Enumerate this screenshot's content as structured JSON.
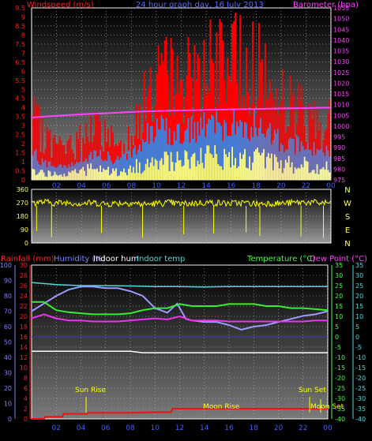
{
  "chart_data": [
    {
      "type": "area",
      "title": "24 hour graph day, 16 July 2013",
      "left_label": "Windspeed (m/s)",
      "right_label": "Barometer (hpa)",
      "x_ticks": [
        "02",
        "04",
        "06",
        "08",
        "10",
        "12",
        "14",
        "16",
        "18",
        "20",
        "22",
        "00"
      ],
      "y_left_ticks": [
        "0",
        "0.5",
        "1",
        "1.5",
        "2",
        "2.5",
        "3",
        "3.5",
        "4",
        "4.5",
        "5",
        "5.5",
        "6",
        "6.5",
        "7",
        "7.5",
        "8",
        "8.5",
        "9",
        "9.5"
      ],
      "y_right_ticks": [
        "975",
        "980",
        "985",
        "990",
        "995",
        "1000",
        "1005",
        "1010",
        "1015",
        "1020",
        "1025",
        "1030",
        "1035",
        "1040",
        "1045",
        "1050",
        "1055"
      ],
      "ylim_left": [
        0,
        9.5
      ],
      "ylim_right": [
        975,
        1055
      ],
      "series": [
        {
          "name": "Wind gust",
          "color": "#ff0000",
          "x": [
            0,
            1,
            2,
            3,
            4,
            5,
            6,
            7,
            8,
            9,
            10,
            11,
            12,
            13,
            14,
            15,
            16,
            17,
            18,
            19,
            20,
            21,
            22,
            23,
            24
          ],
          "values": [
            3.4,
            2.4,
            1.9,
            1.7,
            2.4,
            2.7,
            2.6,
            1.9,
            2.5,
            4.1,
            5.6,
            5.6,
            5.4,
            5.9,
            6.3,
            6.1,
            6.6,
            6.4,
            6.4,
            5.1,
            4.4,
            4.1,
            3.6,
            3.2,
            3.2
          ]
        },
        {
          "name": "Wind average",
          "color": "#4a7fd8",
          "x": [
            0,
            1,
            2,
            3,
            4,
            5,
            6,
            7,
            8,
            9,
            10,
            11,
            12,
            13,
            14,
            15,
            16,
            17,
            18,
            19,
            20,
            21,
            22,
            23,
            24
          ],
          "values": [
            1.6,
            0.9,
            0.8,
            0.8,
            1.2,
            1.4,
            1.3,
            1.0,
            1.5,
            2.3,
            2.8,
            2.7,
            2.6,
            2.8,
            3.1,
            2.9,
            3.1,
            3.0,
            3.0,
            2.6,
            2.2,
            2.0,
            1.8,
            1.6,
            1.7
          ]
        },
        {
          "name": "Wind minimum",
          "color": "#ffff88",
          "x": [
            0,
            1,
            2,
            3,
            4,
            5,
            6,
            7,
            8,
            9,
            10,
            11,
            12,
            13,
            14,
            15,
            16,
            17,
            18,
            19,
            20,
            21,
            22,
            23,
            24
          ],
          "values": [
            0.6,
            0.4,
            0.3,
            0.4,
            0.5,
            0.6,
            0.5,
            0.4,
            0.6,
            0.9,
            1.0,
            1.1,
            1.0,
            1.1,
            1.2,
            1.2,
            1.3,
            1.2,
            1.2,
            1.0,
            0.9,
            0.8,
            0.8,
            0.7,
            0.7
          ]
        },
        {
          "name": "Barometer",
          "color": "#ff44ff",
          "axis": "right",
          "x": [
            0,
            2,
            4,
            6,
            8,
            10,
            12,
            14,
            16,
            18,
            20,
            22,
            24
          ],
          "values": [
            1004.0,
            1004.8,
            1005.5,
            1006.0,
            1006.6,
            1007.0,
            1007.3,
            1007.5,
            1007.8,
            1008.0,
            1008.2,
            1008.4,
            1008.6
          ]
        }
      ]
    },
    {
      "type": "line",
      "left_ticks": [
        "0",
        "90",
        "180",
        "270",
        "360"
      ],
      "right_ticks": [
        "N",
        "W",
        "S",
        "E",
        "N"
      ],
      "ylim": [
        0,
        360
      ],
      "series": [
        {
          "name": "Wind direction",
          "color": "#ffff00",
          "x": [
            0,
            1,
            2,
            3,
            4,
            5,
            6,
            7,
            8,
            9,
            10,
            11,
            12,
            13,
            14,
            15,
            16,
            17,
            18,
            19,
            20,
            21,
            22,
            23,
            24
          ],
          "values": [
            270,
            275,
            268,
            272,
            265,
            270,
            262,
            268,
            270,
            258,
            265,
            270,
            262,
            266,
            272,
            268,
            265,
            270,
            262,
            268,
            265,
            270,
            275,
            268,
            270
          ]
        }
      ]
    },
    {
      "type": "line",
      "labels": {
        "rain": "Rainfall (mm)",
        "humidity": "Humidity (%)",
        "indoor_hum": "Indoor hum",
        "indoor_temp": "Indoor temp",
        "temperature": "Temperature (°C)",
        "dewpoint": "Dew Point (°C)"
      },
      "events": {
        "sun_rise": "Sun Rise",
        "sun_set": "Sun Set",
        "moon_rise": "Moon Rise",
        "moon_set": "Moon Set"
      },
      "y_humidity_ticks": [
        "0",
        "10",
        "20",
        "30",
        "40",
        "50",
        "60",
        "70",
        "80",
        "90",
        "100"
      ],
      "y_rain_ticks": [
        "0",
        "2",
        "4",
        "6",
        "8",
        "10",
        "12",
        "14",
        "16",
        "18",
        "20",
        "22",
        "24",
        "26",
        "28",
        "30"
      ],
      "y_temp_ticks": [
        "35",
        "30",
        "25",
        "20",
        "15",
        "10",
        "5",
        "0",
        "-5",
        "-10",
        "-15",
        "-20",
        "-25",
        "-30",
        "-35",
        "-40"
      ],
      "y_dew_ticks": [
        "35",
        "30",
        "25",
        "20",
        "15",
        "10",
        "5",
        "0",
        "-5",
        "-10",
        "-15",
        "-20",
        "-25",
        "-30",
        "-35",
        "-40"
      ],
      "x_ticks": [
        "02",
        "04",
        "06",
        "08",
        "10",
        "12",
        "14",
        "16",
        "18",
        "20",
        "22",
        "00"
      ],
      "ylim_temp": [
        -40,
        35
      ],
      "series": [
        {
          "name": "Humidity",
          "color": "#9a9aff",
          "unit": "%",
          "x": [
            0,
            1,
            2,
            3,
            4,
            5,
            6,
            7,
            8,
            9,
            10,
            11,
            11.8,
            12.5,
            13,
            14,
            15,
            16,
            17,
            18,
            19,
            20,
            21,
            22,
            23,
            24
          ],
          "values": [
            70,
            75,
            80,
            84,
            86,
            86,
            85,
            85,
            83,
            80,
            72,
            69,
            75,
            65,
            64,
            63,
            63,
            61,
            58,
            60,
            61,
            63,
            65,
            67,
            68,
            70
          ]
        },
        {
          "name": "Indoor hum",
          "color": "#ffffff",
          "unit": "%",
          "x": [
            0,
            1,
            2,
            3,
            4,
            5,
            6,
            7,
            8,
            9,
            10,
            11,
            12,
            13,
            14,
            15,
            16,
            17,
            18,
            19,
            20,
            21,
            22,
            23,
            24
          ],
          "values": [
            44,
            44,
            44,
            44,
            44,
            44,
            44,
            44,
            44,
            43,
            43,
            43,
            43,
            43,
            43,
            43,
            43,
            43,
            43,
            43,
            43,
            43,
            43,
            43,
            43
          ]
        },
        {
          "name": "Indoor temp",
          "color": "#44dddd",
          "unit": "°C",
          "x": [
            0,
            2,
            4,
            6,
            8,
            10,
            12,
            14,
            16,
            18,
            20,
            22,
            24
          ],
          "values": [
            26.5,
            25.5,
            25.0,
            25.0,
            24.8,
            24.5,
            24.5,
            24.3,
            24.5,
            24.5,
            24.5,
            24.5,
            24.5
          ]
        },
        {
          "name": "Temperature",
          "color": "#33ee33",
          "unit": "°C",
          "x": [
            0,
            1,
            2,
            3,
            4,
            5,
            6,
            7,
            8,
            9,
            10,
            11,
            12,
            13,
            14,
            15,
            16,
            17,
            18,
            19,
            20,
            21,
            22,
            23,
            24
          ],
          "values": [
            17,
            17,
            13,
            12,
            11.5,
            11,
            11,
            11,
            11.5,
            13,
            14,
            14,
            16,
            15,
            15,
            15,
            16,
            16,
            16,
            15,
            15,
            14,
            14,
            13.5,
            13
          ]
        },
        {
          "name": "Dew Point",
          "color": "#ee33ee",
          "unit": "°C",
          "x": [
            0,
            1,
            2,
            3,
            4,
            5,
            6,
            7,
            8,
            9,
            10,
            11,
            12,
            13,
            14,
            15,
            16,
            17,
            18,
            19,
            20,
            21,
            22,
            23,
            24
          ],
          "values": [
            9,
            11,
            9,
            8,
            8,
            7.5,
            7.5,
            7.5,
            8,
            8.5,
            9,
            8.5,
            10,
            8,
            8,
            8,
            7.5,
            7.5,
            7.5,
            7.5,
            7.5,
            7.5,
            7.5,
            8,
            8
          ]
        },
        {
          "name": "Rainfall",
          "color": "#ee1111",
          "unit": "mm",
          "x": [
            0,
            1,
            1.1,
            2.5,
            2.6,
            4.5,
            4.6,
            6,
            8,
            10,
            11.3,
            11.4,
            12,
            14,
            16,
            18,
            20,
            22,
            24
          ],
          "values": [
            0,
            0,
            0.4,
            0.4,
            1.0,
            1.0,
            1.2,
            1.2,
            1.2,
            1.3,
            1.3,
            2.0,
            2.0,
            2.0,
            2.0,
            2.0,
            2.0,
            2.0,
            2.0
          ]
        }
      ]
    }
  ]
}
